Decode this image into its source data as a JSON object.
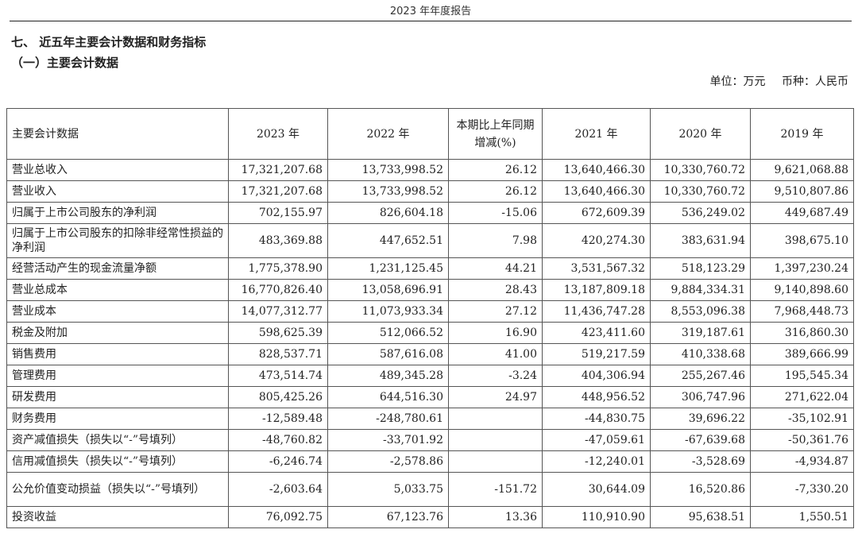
{
  "header": {
    "title": "2023 年年度报告"
  },
  "section": {
    "title": "七、 近五年主要会计数据和财务指标",
    "subtitle": "（一）主要会计数据"
  },
  "unit_note": {
    "unit": "单位：万元",
    "currency": "币种：人民币"
  },
  "table": {
    "columns": [
      "主要会计数据",
      "2023 年",
      "2022 年",
      "本期比上年同期增减(%)",
      "2021 年",
      "2020 年",
      "2019 年"
    ],
    "rows": [
      {
        "label": "营业总收入",
        "y2023": "17,321,207.68",
        "y2022": "13,733,998.52",
        "change": "26.12",
        "y2021": "13,640,466.30",
        "y2020": "10,330,760.72",
        "y2019": "9,621,068.88"
      },
      {
        "label": "营业收入",
        "y2023": "17,321,207.68",
        "y2022": "13,733,998.52",
        "change": "26.12",
        "y2021": "13,640,466.30",
        "y2020": "10,330,760.72",
        "y2019": "9,510,807.86"
      },
      {
        "label": "归属于上市公司股东的净利润",
        "y2023": "702,155.97",
        "y2022": "826,604.18",
        "change": "-15.06",
        "y2021": "672,609.39",
        "y2020": "536,249.02",
        "y2019": "449,687.49"
      },
      {
        "label": "归属于上市公司股东的扣除非经常性损益的净利润",
        "y2023": "483,369.88",
        "y2022": "447,652.51",
        "change": "7.98",
        "y2021": "420,274.30",
        "y2020": "383,631.94",
        "y2019": "398,675.10"
      },
      {
        "label": "经营活动产生的现金流量净额",
        "y2023": "1,775,378.90",
        "y2022": "1,231,125.45",
        "change": "44.21",
        "y2021": "3,531,567.32",
        "y2020": "518,123.29",
        "y2019": "1,397,230.24"
      },
      {
        "label": "营业总成本",
        "y2023": "16,770,826.40",
        "y2022": "13,058,696.91",
        "change": "28.43",
        "y2021": "13,187,809.18",
        "y2020": "9,884,334.31",
        "y2019": "9,140,898.60"
      },
      {
        "label": "营业成本",
        "y2023": "14,077,312.77",
        "y2022": "11,073,933.34",
        "change": "27.12",
        "y2021": "11,436,747.28",
        "y2020": "8,553,096.38",
        "y2019": "7,968,448.73"
      },
      {
        "label": "税金及附加",
        "y2023": "598,625.39",
        "y2022": "512,066.52",
        "change": "16.90",
        "y2021": "423,411.60",
        "y2020": "319,187.61",
        "y2019": "316,860.30"
      },
      {
        "label": "销售费用",
        "y2023": "828,537.71",
        "y2022": "587,616.08",
        "change": "41.00",
        "y2021": "519,217.59",
        "y2020": "410,338.68",
        "y2019": "389,666.99"
      },
      {
        "label": "管理费用",
        "y2023": "473,514.74",
        "y2022": "489,345.28",
        "change": "-3.24",
        "y2021": "404,306.94",
        "y2020": "255,267.46",
        "y2019": "195,545.34"
      },
      {
        "label": "研发费用",
        "y2023": "805,425.26",
        "y2022": "644,516.30",
        "change": "24.97",
        "y2021": "448,956.52",
        "y2020": "306,747.96",
        "y2019": "271,622.04"
      },
      {
        "label": "财务费用",
        "y2023": "-12,589.48",
        "y2022": "-248,780.61",
        "change": "",
        "y2021": "-44,830.75",
        "y2020": "39,696.22",
        "y2019": "-35,102.91"
      },
      {
        "label": "资产减值损失（损失以“-”号填列）",
        "y2023": "-48,760.82",
        "y2022": "-33,701.92",
        "change": "",
        "y2021": "-47,059.61",
        "y2020": "-67,639.68",
        "y2019": "-50,361.76"
      },
      {
        "label": "信用减值损失（损失以“-”号填列）",
        "y2023": "-6,246.74",
        "y2022": "-2,578.86",
        "change": "",
        "y2021": "-12,240.01",
        "y2020": "-3,528.69",
        "y2019": "-4,934.87"
      },
      {
        "label": "公允价值变动损益（损失以“-”号填列）",
        "y2023": "-2,603.64",
        "y2022": "5,033.75",
        "change": "-151.72",
        "y2021": "30,644.09",
        "y2020": "16,520.86",
        "y2019": "-7,330.20"
      },
      {
        "label": "投资收益",
        "y2023": "76,092.75",
        "y2022": "67,123.76",
        "change": "13.36",
        "y2021": "110,910.90",
        "y2020": "95,638.51",
        "y2019": "1,550.51"
      }
    ]
  }
}
